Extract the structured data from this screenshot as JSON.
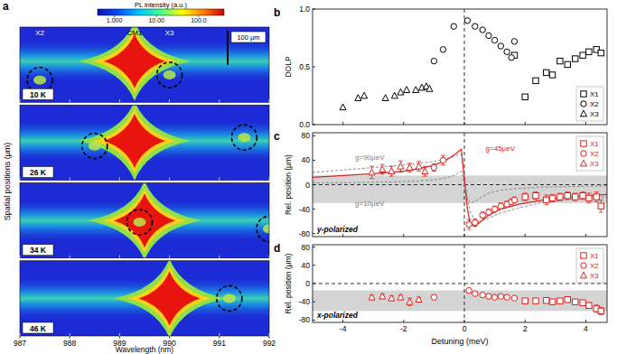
{
  "chart_data": [
    {
      "type": "image_map",
      "panel_label": "a",
      "xlabel": "Wavelength (nm)",
      "ylabel": "Spatial positions (μm)",
      "xlim": [
        987,
        992
      ],
      "xticks": [
        987,
        988,
        989,
        990,
        991,
        992
      ],
      "ylim": [
        -110,
        110
      ],
      "tick_labels": "x",
      "scale_bar": {
        "value": 100,
        "label": "100 μm"
      },
      "colorbar": {
        "title": "PL intensity (a.u.)",
        "log": true,
        "range": [
          0.4,
          400
        ],
        "ticks": [
          {
            "value": 1,
            "label": "1.000"
          },
          {
            "value": 10,
            "label": "10.00"
          },
          {
            "value": 100,
            "label": "100.0"
          }
        ]
      },
      "subpanels": [
        {
          "label": "10 K",
          "peak": {
            "name": "CM1",
            "x": 989.3,
            "y": 10
          },
          "spots": [
            {
              "name": "X2",
              "x": 987.4,
              "y": -45
            },
            {
              "name": "X3",
              "x": 990.0,
              "y": -30
            }
          ]
        },
        {
          "label": "26 K",
          "peak": {
            "x": 989.3,
            "y": 5
          },
          "spots": [
            {
              "x": 988.5,
              "y": -10
            },
            {
              "x": 991.5,
              "y": 15
            }
          ]
        },
        {
          "label": "34 K",
          "peak": {
            "x": 989.5,
            "y": 0
          },
          "spots": [
            {
              "x": 989.4,
              "y": -5
            },
            {
              "x": 992.0,
              "y": -25
            }
          ]
        },
        {
          "label": "46 K",
          "peak": {
            "x": 990.0,
            "y": 0
          },
          "spots": [
            {
              "x": 991.2,
              "y": 0
            }
          ]
        }
      ]
    },
    {
      "type": "scatter",
      "panel_label": "b",
      "ylabel": "DOLP",
      "xlim": [
        -5,
        4.7
      ],
      "xticks": [
        -4,
        -2,
        0,
        2,
        4
      ],
      "ylim": [
        0,
        1
      ],
      "yticks": [
        {
          "value": 0,
          "label": "0.0"
        },
        {
          "value": 0.5,
          "label": "0.5"
        },
        {
          "value": 1,
          "label": "1.0"
        }
      ],
      "tick_labels": "y",
      "legend": "lower right",
      "reference_x": 0,
      "series": [
        {
          "name": "X1",
          "marker": "square",
          "color": "#000000",
          "x": [
            1.65,
            2.0,
            2.35,
            2.7,
            2.9,
            3.15,
            3.4,
            3.65,
            3.9,
            4.1,
            4.35,
            4.5
          ],
          "values": [
            0.6,
            0.24,
            0.38,
            0.45,
            0.43,
            0.55,
            0.52,
            0.57,
            0.6,
            0.63,
            0.65,
            0.62
          ]
        },
        {
          "name": "X2",
          "marker": "circle",
          "color": "#000000",
          "x": [
            -1.0,
            -0.7,
            -0.35,
            0.1,
            0.35,
            0.6,
            0.8,
            1.0,
            1.2,
            1.4,
            1.55,
            1.65
          ],
          "values": [
            0.55,
            0.65,
            0.85,
            0.9,
            0.85,
            0.82,
            0.77,
            0.73,
            0.68,
            0.63,
            0.58,
            0.72
          ]
        },
        {
          "name": "X3",
          "marker": "triangle",
          "color": "#000000",
          "x": [
            -4.0,
            -3.5,
            -3.3,
            -2.6,
            -2.3,
            -2.1,
            -1.9,
            -1.6,
            -1.4,
            -1.25,
            -1.15
          ],
          "values": [
            0.15,
            0.23,
            0.25,
            0.23,
            0.25,
            0.28,
            0.3,
            0.3,
            0.32,
            0.33,
            0.31
          ]
        }
      ]
    },
    {
      "type": "scatter",
      "panel_label": "c",
      "subtitle": "y-polarized",
      "ylabel": "Rel. position (μm)",
      "xlim": [
        -5,
        4.7
      ],
      "xticks": [
        -4,
        -2,
        0,
        2,
        4
      ],
      "ylim": [
        -85,
        85
      ],
      "yticks": [
        -80,
        -40,
        0,
        40,
        80
      ],
      "tick_labels": "y",
      "legend": "upper right",
      "reference_x": 0,
      "reference_y": 0,
      "band": [
        -30,
        15
      ],
      "curves": [
        {
          "type": "line",
          "color": "#808080",
          "line_style": "dashed",
          "x": [
            -5,
            -4,
            -3,
            -2,
            -1.5,
            -1,
            -0.6,
            -0.3,
            -0.1,
            0.1,
            0.2,
            0.35,
            0.5,
            0.8,
            1.2,
            1.8,
            2.5,
            3.5,
            4.7
          ],
          "values": [
            20,
            24,
            28,
            32,
            35,
            38,
            42,
            47,
            50,
            -25,
            -45,
            -58,
            -60,
            -55,
            -46,
            -38,
            -30,
            -24,
            -20
          ]
        },
        {
          "type": "line",
          "color": "#e0201b",
          "line_style": "solid",
          "x": [
            -5,
            -4,
            -3,
            -2,
            -1.5,
            -1,
            -0.6,
            -0.3,
            -0.1,
            0.1,
            0.2,
            0.35,
            0.5,
            0.8,
            1.2,
            1.8,
            2.5,
            3.5,
            4.7
          ],
          "values": [
            12,
            15,
            18,
            22,
            26,
            32,
            40,
            50,
            58,
            -40,
            -65,
            -68,
            -62,
            -50,
            -40,
            -32,
            -26,
            -20,
            -16
          ]
        },
        {
          "type": "line",
          "color": "#808080",
          "line_style": "dashed",
          "x": [
            -5,
            -4,
            -3,
            -2,
            -1.5,
            -1,
            -0.6,
            -0.3,
            -0.1,
            0.1,
            0.2,
            0.35,
            0.5,
            0.8,
            1.2,
            1.8,
            2.5,
            3.5,
            4.7
          ],
          "values": [
            3,
            3,
            4,
            5,
            6,
            8,
            11,
            16,
            22,
            -22,
            -30,
            -28,
            -22,
            -14,
            -9,
            -6,
            -4,
            -3,
            -2
          ]
        }
      ],
      "annotations": [
        {
          "text": "g=90μeV",
          "x": -3.6,
          "y": 40,
          "color": "#808080"
        },
        {
          "text": "g=45μeV",
          "x": 0.7,
          "y": 55,
          "color": "#e0201b"
        },
        {
          "text": "g=10μeV",
          "x": -3.6,
          "y": -34,
          "color": "#808080"
        }
      ],
      "series": [
        {
          "name": "X1",
          "marker": "square",
          "color": "#e0201b",
          "x": [
            2.0,
            2.35,
            2.7,
            2.9,
            3.15,
            3.4,
            3.65,
            3.9,
            4.1,
            4.35,
            4.5
          ],
          "values": [
            -20,
            -18,
            -25,
            -22,
            -20,
            -18,
            -20,
            -18,
            -22,
            -20,
            -35
          ],
          "errors": [
            6,
            6,
            8,
            6,
            6,
            6,
            6,
            6,
            8,
            8,
            10
          ]
        },
        {
          "name": "X2",
          "marker": "circle",
          "color": "#e0201b",
          "x": [
            -1.0,
            -0.7,
            0.15,
            0.35,
            0.6,
            0.8,
            1.0,
            1.2,
            1.4,
            1.55,
            1.65
          ],
          "values": [
            28,
            40,
            -65,
            -62,
            -50,
            -45,
            -40,
            -35,
            -32,
            -28,
            -25
          ],
          "errors": [
            6,
            8,
            8,
            6,
            5,
            5,
            5,
            5,
            5,
            5,
            5
          ]
        },
        {
          "name": "X3",
          "marker": "triangle",
          "color": "#e0201b",
          "x": [
            -3.05,
            -2.7,
            -2.4,
            -2.1,
            -1.8,
            -1.5,
            -1.3
          ],
          "values": [
            20,
            25,
            22,
            30,
            28,
            30,
            22
          ],
          "errors": [
            10,
            8,
            8,
            9,
            7,
            8,
            8
          ]
        }
      ]
    },
    {
      "type": "scatter",
      "panel_label": "d",
      "subtitle": "x-polarized",
      "xlabel": "Detuning (meV)",
      "ylabel": "Rel. position (μm)",
      "xlim": [
        -5,
        4.7
      ],
      "xticks": [
        -4,
        -2,
        0,
        2,
        4
      ],
      "ylim": [
        -85,
        85
      ],
      "yticks": [
        -80,
        -40,
        0,
        40,
        80
      ],
      "legend": "upper right",
      "reference_x": 0,
      "reference_y": 0,
      "band": [
        -60,
        -15
      ],
      "series": [
        {
          "name": "X1",
          "marker": "square",
          "color": "#e0201b",
          "x": [
            2.0,
            2.35,
            2.7,
            2.9,
            3.15,
            3.4,
            3.65,
            3.9,
            4.1,
            4.35,
            4.5
          ],
          "values": [
            -38,
            -38,
            -37,
            -40,
            -38,
            -35,
            -40,
            -42,
            -48,
            -55,
            -60
          ],
          "errors": [
            4,
            4,
            4,
            4,
            4,
            4,
            5,
            5,
            6,
            8,
            8
          ]
        },
        {
          "name": "X2",
          "marker": "circle",
          "color": "#e0201b",
          "x": [
            -1.0,
            0.15,
            0.35,
            0.6,
            0.8,
            1.0,
            1.2,
            1.4,
            1.65
          ],
          "values": [
            -30,
            -15,
            -22,
            -25,
            -28,
            -30,
            -28,
            -30,
            -32
          ],
          "errors": [
            5,
            3,
            4,
            4,
            4,
            4,
            4,
            4,
            4
          ]
        },
        {
          "name": "X3",
          "marker": "triangle",
          "color": "#e0201b",
          "x": [
            -3.05,
            -2.7,
            -2.4,
            -2.1,
            -1.8,
            -1.5
          ],
          "values": [
            -30,
            -28,
            -32,
            -30,
            -40,
            -35
          ],
          "errors": [
            5,
            5,
            5,
            5,
            8,
            5
          ]
        }
      ]
    }
  ]
}
